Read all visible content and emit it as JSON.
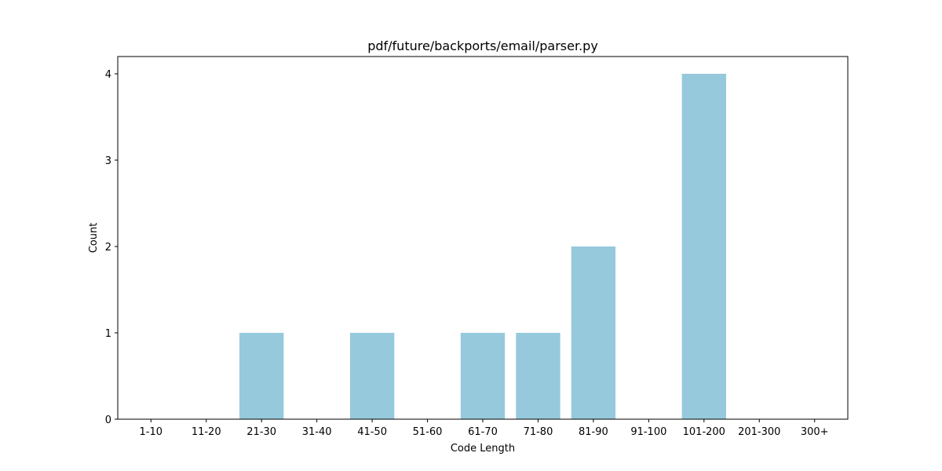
{
  "chart_data": {
    "type": "bar",
    "title": "pdf/future/backports/email/parser.py",
    "xlabel": "Code Length",
    "ylabel": "Count",
    "categories": [
      "1-10",
      "11-20",
      "21-30",
      "31-40",
      "41-50",
      "51-60",
      "61-70",
      "71-80",
      "81-90",
      "91-100",
      "101-200",
      "201-300",
      "300+"
    ],
    "values": [
      0,
      0,
      1,
      0,
      1,
      0,
      1,
      1,
      2,
      0,
      4,
      0,
      0
    ],
    "ylim": [
      0,
      4.2
    ],
    "yticks": [
      0,
      1,
      2,
      3,
      4
    ],
    "bar_color": "#96c9dc",
    "grid": false
  }
}
